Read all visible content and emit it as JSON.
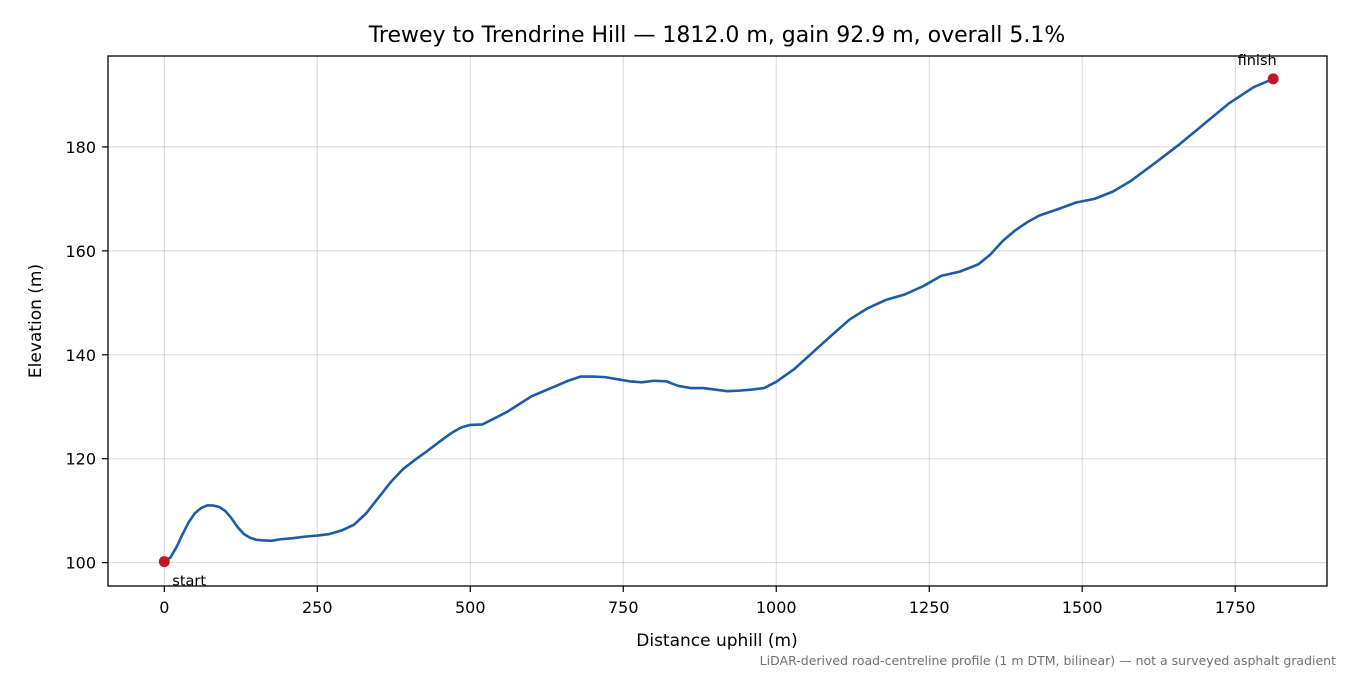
{
  "chart_data": {
    "type": "line",
    "title": "Trewey to Trendrine Hill — 1812.0 m, gain 92.9 m, overall 5.1%",
    "xlabel": "Distance uphill (m)",
    "ylabel": "Elevation (m)",
    "xlim": [
      -92,
      1900
    ],
    "ylim": [
      95.5,
      197.5
    ],
    "xticks": [
      0,
      250,
      500,
      750,
      1000,
      1250,
      1500,
      1750
    ],
    "xtick_labels": [
      "0",
      "250",
      "500",
      "750",
      "1000",
      "1250",
      "1500",
      "1750"
    ],
    "yticks": [
      100,
      120,
      140,
      160,
      180
    ],
    "ytick_labels": [
      "100",
      "120",
      "140",
      "160",
      "180"
    ],
    "grid": true,
    "line_color": "#1f5aa6",
    "marker_color": "#c0182a",
    "series": [
      {
        "x": [
          0,
          10,
          20,
          30,
          40,
          50,
          60,
          70,
          80,
          90,
          100,
          110,
          120,
          130,
          140,
          150,
          160,
          175,
          190,
          210,
          230,
          250,
          270,
          290,
          310,
          330,
          350,
          370,
          390,
          410,
          430,
          450,
          470,
          485,
          500,
          520,
          540,
          560,
          580,
          600,
          630,
          660,
          680,
          700,
          720,
          740,
          760,
          780,
          800,
          820,
          840,
          860,
          880,
          900,
          920,
          940,
          960,
          980,
          1000,
          1030,
          1060,
          1090,
          1120,
          1150,
          1180,
          1210,
          1240,
          1270,
          1300,
          1330,
          1350,
          1370,
          1390,
          1410,
          1430,
          1460,
          1490,
          1520,
          1550,
          1580,
          1620,
          1660,
          1700,
          1740,
          1780,
          1812
        ],
        "y": [
          100.2,
          101.0,
          103.0,
          105.5,
          107.8,
          109.5,
          110.5,
          111.0,
          111.0,
          110.7,
          109.9,
          108.5,
          106.8,
          105.5,
          104.8,
          104.4,
          104.3,
          104.2,
          104.5,
          104.7,
          105.0,
          105.2,
          105.5,
          106.2,
          107.3,
          109.5,
          112.5,
          115.5,
          118.0,
          119.8,
          121.5,
          123.3,
          125.0,
          126.0,
          126.5,
          126.6,
          127.8,
          129.0,
          130.5,
          132.0,
          133.5,
          135.0,
          135.8,
          135.8,
          135.7,
          135.3,
          134.9,
          134.7,
          135.0,
          134.9,
          134.0,
          133.6,
          133.6,
          133.3,
          133.0,
          133.1,
          133.3,
          133.6,
          134.8,
          137.3,
          140.5,
          143.7,
          146.8,
          149.0,
          150.6,
          151.6,
          153.2,
          155.2,
          156.0,
          157.4,
          159.3,
          161.9,
          163.9,
          165.5,
          166.8,
          168.0,
          169.3,
          170.0,
          171.4,
          173.5,
          177.0,
          180.6,
          184.5,
          188.4,
          191.5,
          193.1
        ]
      }
    ],
    "annotations": [
      {
        "text": "start",
        "x": 0,
        "y": 100.2
      },
      {
        "text": "finish",
        "x": 1812,
        "y": 193.1
      }
    ],
    "footnote": "LiDAR-derived road-centreline profile (1 m DTM, bilinear) — not a surveyed asphalt gradient"
  }
}
